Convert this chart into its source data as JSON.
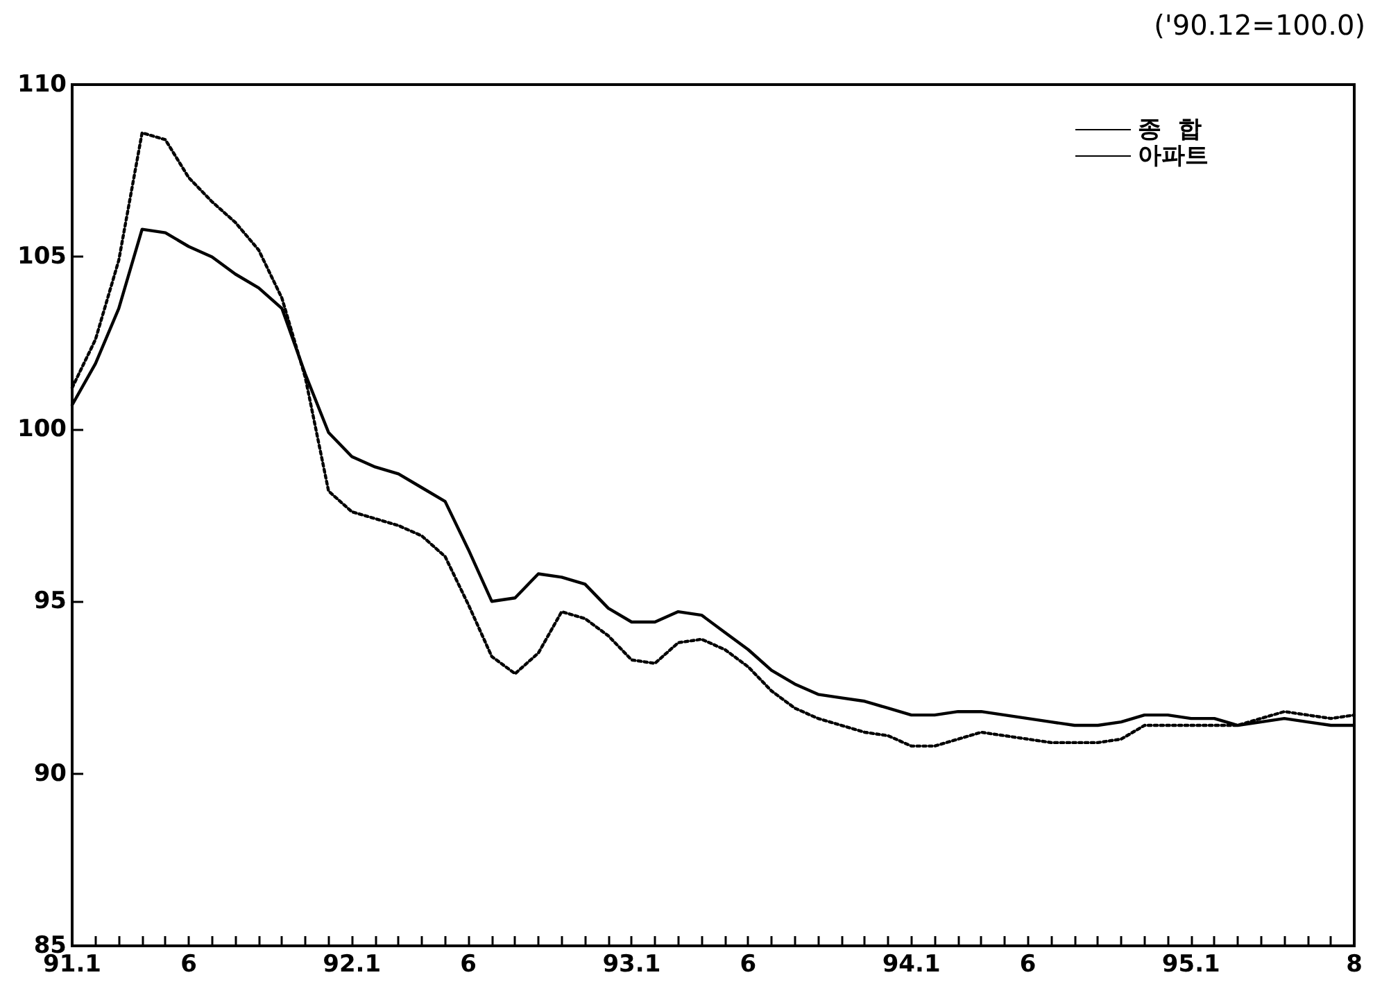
{
  "chart_data": {
    "type": "line",
    "annotations": [
      "('90.12=100.0)"
    ],
    "categories": [
      "91.1",
      null,
      null,
      null,
      null,
      "6",
      null,
      null,
      null,
      null,
      null,
      null,
      "92.1",
      null,
      null,
      null,
      null,
      "6",
      null,
      null,
      null,
      null,
      null,
      null,
      "93.1",
      null,
      null,
      null,
      null,
      "6",
      null,
      null,
      null,
      null,
      null,
      null,
      "94.1",
      null,
      null,
      null,
      null,
      "6",
      null,
      null,
      null,
      null,
      null,
      null,
      "95.1",
      null,
      null,
      null,
      null,
      null,
      null,
      "8"
    ],
    "series": [
      {
        "name": "종  합",
        "color": "#000000",
        "line_style": "solid",
        "values": [
          100.7,
          101.9,
          103.5,
          105.8,
          105.7,
          105.3,
          105.0,
          104.5,
          104.1,
          103.5,
          101.6,
          99.9,
          99.2,
          98.9,
          98.7,
          98.3,
          97.9,
          96.5,
          95.0,
          95.1,
          95.8,
          95.7,
          95.5,
          94.8,
          94.4,
          94.4,
          94.7,
          94.6,
          94.1,
          93.6,
          93.0,
          92.6,
          92.3,
          92.2,
          92.1,
          91.9,
          91.7,
          91.7,
          91.8,
          91.8,
          91.7,
          91.6,
          91.5,
          91.4,
          91.4,
          91.5,
          91.7,
          91.7,
          91.6,
          91.6,
          91.4,
          91.5,
          91.6,
          91.5,
          91.4,
          91.4
        ]
      },
      {
        "name": "아파트",
        "color": "#000000",
        "line_style": "dotted",
        "values": [
          101.2,
          102.6,
          104.9,
          108.6,
          108.4,
          107.3,
          106.6,
          106.0,
          105.2,
          103.8,
          101.5,
          98.2,
          97.6,
          97.4,
          97.2,
          96.9,
          96.3,
          94.9,
          93.4,
          92.9,
          93.5,
          94.7,
          94.5,
          94.0,
          93.3,
          93.2,
          93.8,
          93.9,
          93.6,
          93.1,
          92.4,
          91.9,
          91.6,
          91.4,
          91.2,
          91.1,
          90.8,
          90.8,
          91.0,
          91.2,
          91.1,
          91.0,
          90.9,
          90.9,
          90.9,
          91.0,
          91.4,
          91.4,
          91.4,
          91.4,
          91.4,
          91.6,
          91.8,
          91.7,
          91.6,
          91.7
        ]
      }
    ],
    "ylim": [
      85,
      110
    ],
    "yticks": [
      85,
      90,
      95,
      100,
      105,
      110
    ],
    "grid": false,
    "legend": "top right",
    "marker": "none"
  }
}
